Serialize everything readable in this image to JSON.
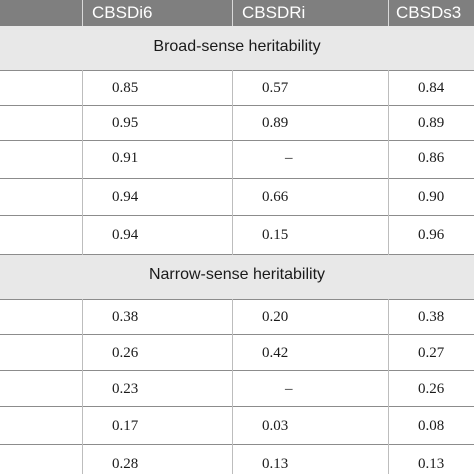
{
  "table": {
    "columns": [
      "CBSDi6",
      "CBSDRi",
      "CBSDs3"
    ],
    "sections": [
      {
        "title": "Broad-sense heritability",
        "rows": [
          [
            "0.85",
            "0.57",
            "0.84"
          ],
          [
            "0.95",
            "0.89",
            "0.89"
          ],
          [
            "0.91",
            "–",
            "0.86"
          ],
          [
            "0.94",
            "0.66",
            "0.90"
          ],
          [
            "0.94",
            "0.15",
            "0.96"
          ]
        ]
      },
      {
        "title": "Narrow-sense heritability",
        "rows": [
          [
            "0.38",
            "0.20",
            "0.38"
          ],
          [
            "0.26",
            "0.42",
            "0.27"
          ],
          [
            "0.23",
            "–",
            "0.26"
          ],
          [
            "0.17",
            "0.03",
            "0.08"
          ],
          [
            "0.28",
            "0.13",
            "0.13"
          ]
        ]
      }
    ]
  },
  "colors": {
    "header_bg": "#7f7f7f",
    "section_bg": "#e8e8e8"
  }
}
